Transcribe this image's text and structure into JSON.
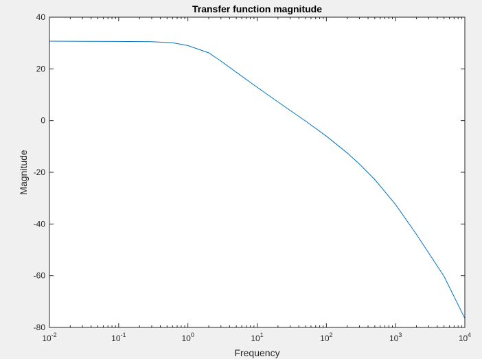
{
  "figure": {
    "background": "#f0f0f0",
    "axes_background": "#ffffff",
    "line_color": "#0072bd"
  },
  "chart_data": {
    "type": "line",
    "title": "Transfer function magnitude",
    "xlabel": "Frequency",
    "ylabel": "Magnitude",
    "xscale": "log",
    "xlim": [
      0.01,
      10000
    ],
    "ylim": [
      -80,
      40
    ],
    "grid": false,
    "x_ticks": [
      {
        "value": 0.01,
        "base": "10",
        "exp": "-2"
      },
      {
        "value": 0.1,
        "base": "10",
        "exp": "-1"
      },
      {
        "value": 1,
        "base": "10",
        "exp": "0"
      },
      {
        "value": 10,
        "base": "10",
        "exp": "1"
      },
      {
        "value": 100,
        "base": "10",
        "exp": "2"
      },
      {
        "value": 1000,
        "base": "10",
        "exp": "3"
      },
      {
        "value": 10000,
        "base": "10",
        "exp": "4"
      }
    ],
    "y_ticks": [
      {
        "value": 40,
        "label": "40"
      },
      {
        "value": 20,
        "label": "20"
      },
      {
        "value": 0,
        "label": "0"
      },
      {
        "value": -20,
        "label": "-20"
      },
      {
        "value": -40,
        "label": "-40"
      },
      {
        "value": -60,
        "label": "-60"
      },
      {
        "value": -80,
        "label": "-80"
      }
    ],
    "series": [
      {
        "x": [
          0.01,
          0.1,
          0.3,
          0.6,
          1,
          2,
          3,
          5,
          10,
          20,
          50,
          100,
          200,
          300,
          500,
          1000,
          2000,
          5000,
          10000
        ],
        "y": [
          30.7,
          30.6,
          30.5,
          30.1,
          29.0,
          26.2,
          23.0,
          18.7,
          12.9,
          7.2,
          -0.2,
          -6.0,
          -12.5,
          -16.8,
          -22.8,
          -32.5,
          -44.0,
          -60.2,
          -76.5
        ]
      }
    ]
  }
}
